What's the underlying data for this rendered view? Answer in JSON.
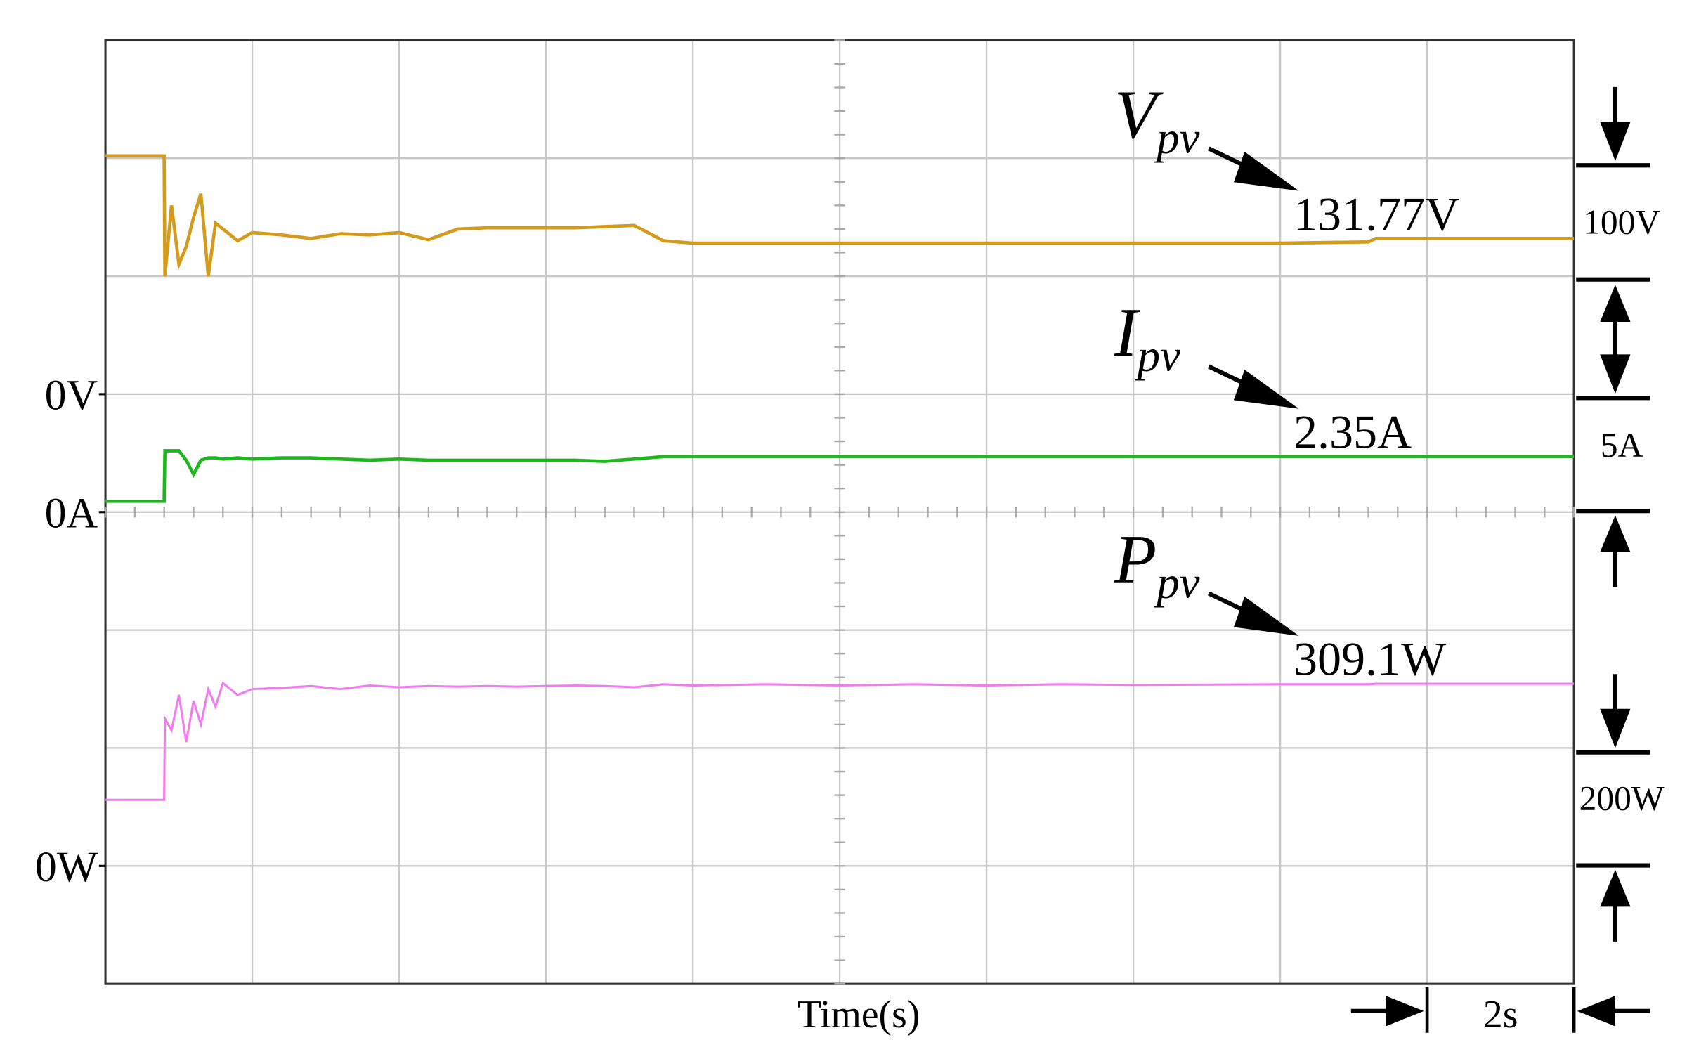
{
  "chart_data": {
    "type": "line",
    "xlabel": "Time(s)",
    "time_per_div": {
      "value": 2,
      "label": "2s"
    },
    "xlim": [
      0,
      20
    ],
    "xticks": [
      0,
      2,
      4,
      6,
      8,
      10,
      12,
      14,
      16,
      18,
      20
    ],
    "grid": true,
    "x": [
      0,
      0.8,
      0.81,
      0.9,
      1.0,
      1.1,
      1.2,
      1.3,
      1.4,
      1.5,
      1.6,
      1.8,
      2.0,
      2.4,
      2.8,
      3.2,
      3.6,
      4.0,
      4.4,
      4.8,
      5.2,
      5.6,
      6.0,
      6.4,
      6.8,
      7.2,
      7.6,
      8.0,
      9,
      10,
      11,
      12,
      13,
      14,
      16,
      17.2,
      17.3,
      18,
      19,
      20
    ],
    "series": [
      {
        "symbol": "V",
        "subscript": "pv",
        "color": "#d49a1c",
        "zero_label": "0V",
        "scale": {
          "value": 100,
          "label": "100V"
        },
        "reading": {
          "value": 131.77,
          "label": "131.77V"
        },
        "values": [
          202,
          202,
          100,
          160,
          110,
          125,
          150,
          170,
          100,
          145,
          140,
          130,
          137,
          135,
          132,
          136,
          135,
          137,
          131,
          140,
          141,
          141,
          141,
          141,
          142,
          143,
          130,
          128,
          128,
          128,
          128,
          128,
          128,
          128,
          128,
          129,
          132,
          132,
          132,
          132
        ]
      },
      {
        "symbol": "I",
        "subscript": "pv",
        "color": "#1fb51f",
        "zero_label": "0A",
        "scale": {
          "value": 5,
          "label": "5A"
        },
        "reading": {
          "value": 2.35,
          "label": "2.35A"
        },
        "values": [
          0.46,
          0.46,
          2.6,
          2.6,
          2.6,
          2.2,
          1.6,
          2.2,
          2.3,
          2.3,
          2.25,
          2.3,
          2.25,
          2.3,
          2.3,
          2.25,
          2.2,
          2.25,
          2.2,
          2.2,
          2.2,
          2.2,
          2.2,
          2.2,
          2.15,
          2.25,
          2.35,
          2.35,
          2.35,
          2.35,
          2.35,
          2.35,
          2.35,
          2.35,
          2.35,
          2.35,
          2.35,
          2.35,
          2.35,
          2.35
        ]
      },
      {
        "symbol": "P",
        "subscript": "pv",
        "color": "#f07cf0",
        "zero_label": "0W",
        "scale": {
          "value": 200,
          "label": "200W"
        },
        "reading": {
          "value": 309.1,
          "label": "309.1W"
        },
        "values": [
          112,
          112,
          250,
          230,
          290,
          210,
          280,
          240,
          300,
          270,
          310,
          290,
          300,
          302,
          305,
          300,
          306,
          303,
          305,
          304,
          305,
          304,
          305,
          306,
          305,
          303,
          308,
          306,
          308,
          306,
          308,
          306,
          308,
          307,
          308,
          308,
          309,
          309,
          309,
          309
        ]
      }
    ]
  }
}
